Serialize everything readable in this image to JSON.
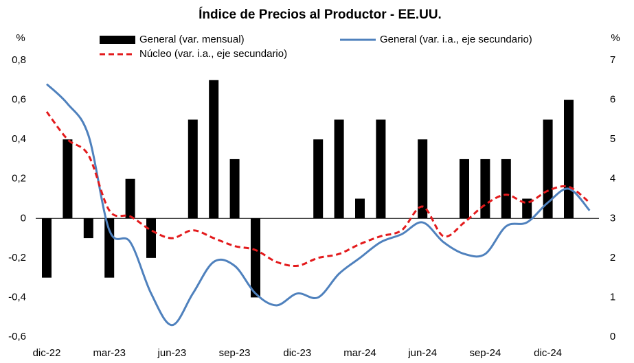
{
  "chart_data": {
    "type": "bar-line",
    "title": "Índice de Precios al Productor - EE.UU.",
    "y_label": "%",
    "y2_label": "%",
    "categories": [
      "dic-22",
      null,
      null,
      "mar-23",
      null,
      null,
      "jun-23",
      null,
      null,
      "sep-23",
      null,
      null,
      "dic-23",
      null,
      null,
      "mar-24",
      null,
      null,
      "jun-24",
      null,
      null,
      "sep-24",
      null,
      null,
      "dic-24",
      null,
      null
    ],
    "ylim": [
      -0.6,
      0.8
    ],
    "yticks": [
      {
        "value": -0.6,
        "label": "-0,6"
      },
      {
        "value": -0.4,
        "label": "-0,4"
      },
      {
        "value": -0.2,
        "label": "-0,2"
      },
      0,
      {
        "value": 0.2,
        "label": "0,2"
      },
      {
        "value": 0.4,
        "label": "0,4"
      },
      {
        "value": 0.6,
        "label": "0,6"
      },
      {
        "value": 0.8,
        "label": "0,8"
      }
    ],
    "y2lim": [
      0,
      7
    ],
    "y2ticks": [
      0,
      1,
      2,
      3,
      4,
      5,
      6,
      7
    ],
    "series": [
      {
        "name": "General (var. mensual)",
        "type": "bar",
        "color": "#000000",
        "values": [
          -0.3,
          0.4,
          -0.1,
          -0.3,
          0.2,
          -0.2,
          0,
          0.5,
          0.7,
          0.3,
          -0.4,
          0,
          0,
          0.4,
          0.5,
          0.1,
          0.5,
          0,
          0.4,
          0,
          0.3,
          0.3,
          0.3,
          0.1,
          0.5,
          0.6,
          0
        ]
      },
      {
        "name": "General (var. i.a., eje secundario)",
        "type": "line",
        "axis": "y2",
        "color": "#4f81bd",
        "values": [
          6.4,
          5.9,
          5.1,
          2.7,
          2.4,
          1.1,
          0.3,
          1.1,
          1.9,
          1.8,
          1.1,
          0.8,
          1.1,
          1.0,
          1.6,
          2.0,
          2.4,
          2.6,
          2.9,
          2.4,
          2.1,
          2.1,
          2.8,
          2.9,
          3.4,
          3.75,
          3.2
        ]
      },
      {
        "name": "Núcleo (var. i.a., eje secundario)",
        "type": "line",
        "axis": "y2",
        "color": "#e31a1c",
        "dashed": true,
        "values": [
          5.7,
          5.0,
          4.6,
          3.2,
          3.05,
          2.7,
          2.5,
          2.7,
          2.5,
          2.3,
          2.2,
          1.9,
          1.8,
          2.0,
          2.1,
          2.35,
          2.55,
          2.7,
          3.3,
          2.55,
          2.9,
          3.35,
          3.6,
          3.4,
          3.7,
          3.8,
          3.4
        ]
      }
    ]
  }
}
